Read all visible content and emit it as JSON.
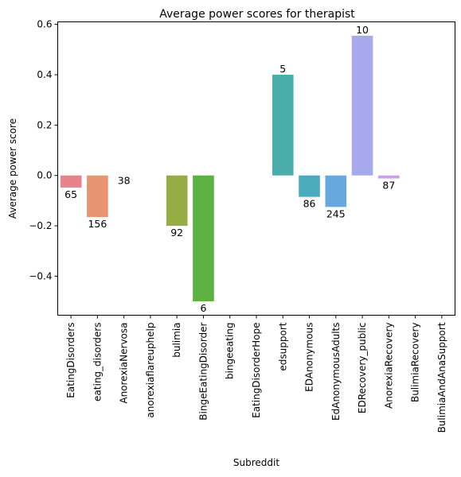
{
  "chart_data": {
    "type": "bar",
    "title": "Average power scores for therapist",
    "xlabel": "Subreddit",
    "ylabel": "Average power score",
    "ylim": [
      -0.555,
      0.61
    ],
    "yticks": [
      -0.4,
      -0.2,
      0.0,
      0.2,
      0.4,
      0.6
    ],
    "ytick_labels": [
      "−0.4",
      "−0.2",
      "0.0",
      "0.2",
      "0.4",
      "0.6"
    ],
    "grid": false,
    "categories": [
      "EatingDisorders",
      "eating_disorders",
      "AnorexiaNervosa",
      "anorexiaflareuphelp",
      "bulimia",
      "BingeEatingDisorder",
      "bingeeating",
      "EatingDisorderHope",
      "edsupport",
      "EDAnonymous",
      "EdAnonymousAdults",
      "EDRecovery_public",
      "AnorexiaRecovery",
      "BulimiaRecovery",
      "BulimiaAndAnaSupport"
    ],
    "values": [
      -0.048,
      -0.165,
      0.0,
      null,
      -0.2,
      -0.5,
      null,
      null,
      0.4,
      -0.085,
      -0.125,
      0.555,
      -0.012,
      null,
      null
    ],
    "counts": [
      "65",
      "156",
      "38",
      null,
      "92",
      "6",
      null,
      null,
      "5",
      "86",
      "245",
      "10",
      "87",
      null,
      null
    ],
    "colors": [
      "#e8828a",
      "#e79570",
      "#c29d3c",
      "#b8a13a",
      "#96ac45",
      "#5eb241",
      "#55b47b",
      "#4cb59a",
      "#49ada9",
      "#4aabbd",
      "#67a9de",
      "#a6a9ec",
      "#c99fe9",
      "#e693d8",
      "#eb8fb8"
    ]
  }
}
